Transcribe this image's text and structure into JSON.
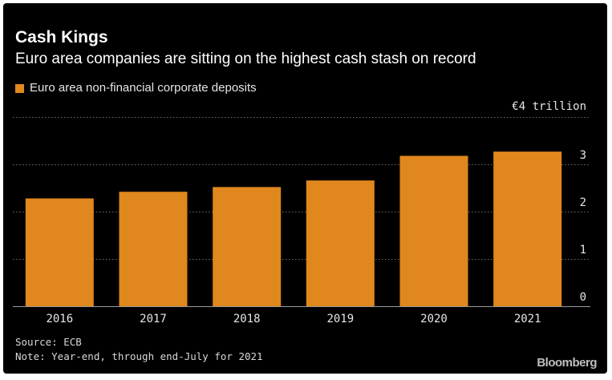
{
  "title": "Cash Kings",
  "subtitle": "Euro area companies are sitting on the highest cash stash on record",
  "legend_label": "Euro area non-financial corporate deposits",
  "source": "Source: ECB",
  "note": "Note: Year-end, through end-July for 2021",
  "brand": "Bloomberg",
  "colors": {
    "background": "#000000",
    "bar": "#e0871d",
    "grid": "#6e6e6e",
    "text": "#ffffff"
  },
  "chart_data": {
    "type": "bar",
    "title": "Cash Kings",
    "subtitle": "Euro area companies are sitting on the highest cash stash on record",
    "categories": [
      "2016",
      "2017",
      "2018",
      "2019",
      "2020",
      "2021"
    ],
    "series": [
      {
        "name": "Euro area non-financial corporate deposits",
        "values": [
          2.28,
          2.42,
          2.52,
          2.66,
          3.18,
          3.27
        ]
      }
    ],
    "xlabel": "",
    "ylabel": "€4 trillion",
    "y_unit_label": "€4 trillion",
    "yticks": [
      0,
      1,
      2,
      3
    ],
    "ylim": [
      0,
      4
    ],
    "grid": true,
    "legend_position": "top-left"
  }
}
